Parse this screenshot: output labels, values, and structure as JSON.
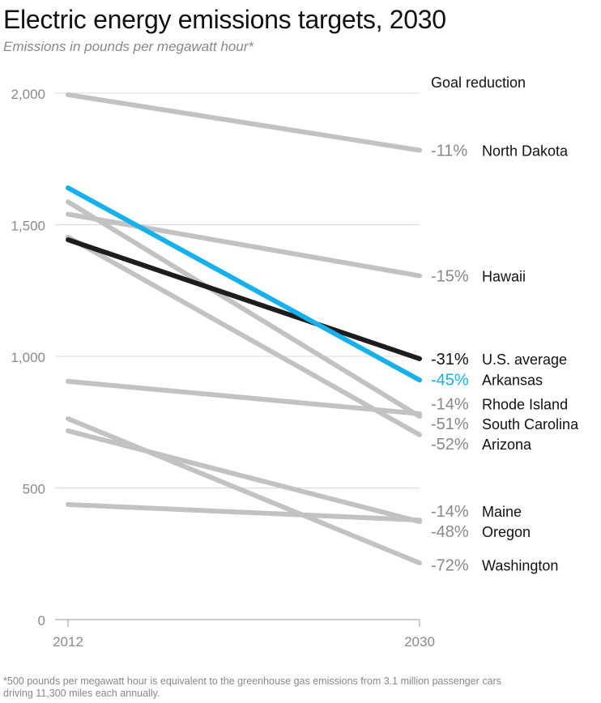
{
  "chart_data": {
    "type": "line",
    "title": "Electric energy emissions targets, 2030",
    "subtitle": "Emissions in pounds per megawatt hour*",
    "x": [
      "2012",
      "2030"
    ],
    "ylim": [
      0,
      2000
    ],
    "yticks": [
      {
        "value": 0,
        "label": "0"
      },
      {
        "value": 500,
        "label": "500"
      },
      {
        "value": 1000,
        "label": "1,000"
      },
      {
        "value": 1500,
        "label": "1,500"
      },
      {
        "value": 2000,
        "label": "2,000"
      }
    ],
    "legend_title": "Goal reduction",
    "series": [
      {
        "name": "North Dakota",
        "pct": "-11%",
        "values": [
          1994,
          1783
        ],
        "color": "#c2c2c4",
        "label_color": "#888888",
        "label_value": 1783
      },
      {
        "name": "Hawaii",
        "pct": "-15%",
        "values": [
          1540,
          1306
        ],
        "color": "#c2c2c4",
        "label_color": "#888888",
        "label_value": 1306
      },
      {
        "name": "Rhode Island",
        "pct": "-14%",
        "values": [
          905,
          782
        ],
        "color": "#c2c2c4",
        "label_color": "#888888",
        "label_value": 820
      },
      {
        "name": "South Carolina",
        "pct": "-51%",
        "values": [
          1587,
          772
        ],
        "color": "#c2c2c4",
        "label_color": "#888888",
        "label_value": 745
      },
      {
        "name": "Arizona",
        "pct": "-52%",
        "values": [
          1453,
          702
        ],
        "color": "#c2c2c4",
        "label_color": "#888888",
        "label_value": 668
      },
      {
        "name": "Maine",
        "pct": "-14%",
        "values": [
          437,
          378
        ],
        "color": "#c2c2c4",
        "label_color": "#888888",
        "label_value": 412
      },
      {
        "name": "Oregon",
        "pct": "-48%",
        "values": [
          717,
          372
        ],
        "color": "#c2c2c4",
        "label_color": "#888888",
        "label_value": 336
      },
      {
        "name": "Washington",
        "pct": "-72%",
        "values": [
          763,
          215
        ],
        "color": "#c2c2c4",
        "label_color": "#888888",
        "label_value": 207
      },
      {
        "name": "U.S. average",
        "pct": "-31%",
        "values": [
          1443,
          991
        ],
        "color": "#1d1d1d",
        "label_color": "#111111",
        "label_value": 991
      },
      {
        "name": "Arkansas",
        "pct": "-45%",
        "values": [
          1640,
          910
        ],
        "color": "#16b0ea",
        "label_color": "#16b0ea",
        "label_value": 913
      }
    ]
  },
  "footnote": {
    "line1": "*500 pounds per megawatt hour is equivalent to the greenhouse gas emissions from 3.1 million passenger cars",
    "line2": "driving 11,300 miles each annually."
  }
}
